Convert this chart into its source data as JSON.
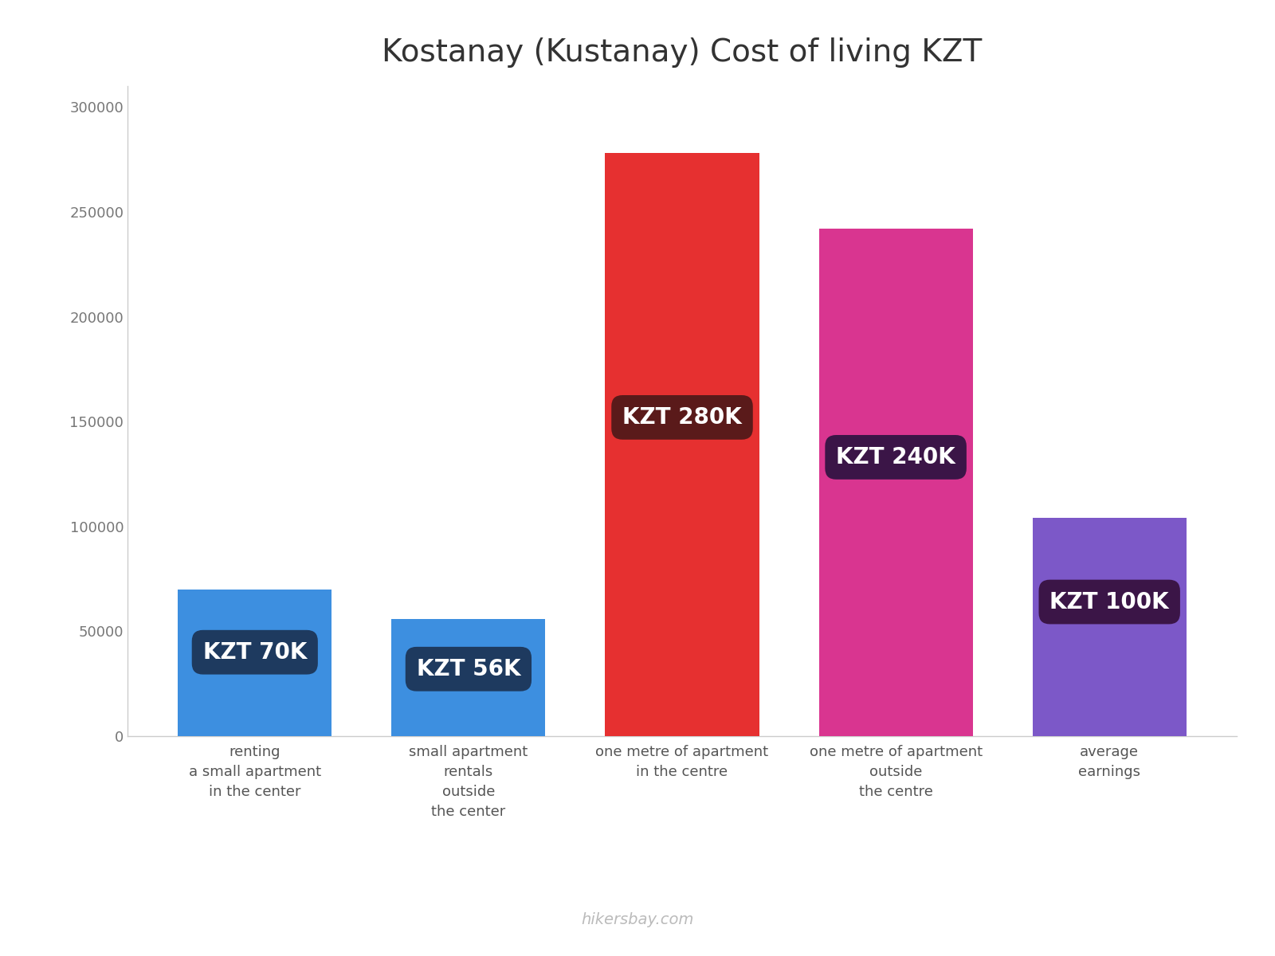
{
  "title": "Kostanay (Kustanay) Cost of living KZT",
  "title_fontsize": 28,
  "categories": [
    "renting\na small apartment\nin the center",
    "small apartment\nrentals\noutside\nthe center",
    "one metre of apartment\nin the centre",
    "one metre of apartment\noutside\nthe centre",
    "average\nearnings"
  ],
  "values": [
    70000,
    56000,
    278000,
    242000,
    104000
  ],
  "bar_colors": [
    "#3d8fe0",
    "#3d8fe0",
    "#e63030",
    "#d93590",
    "#7c58c8"
  ],
  "label_texts": [
    "KZT 70K",
    "KZT 56K",
    "KZT 280K",
    "KZT 240K",
    "KZT 100K"
  ],
  "label_bg_colors": [
    "#1e3a5f",
    "#1e3a5f",
    "#5a1a1a",
    "#3b1547",
    "#3b1547"
  ],
  "label_y_positions": [
    40000,
    32000,
    152000,
    133000,
    64000
  ],
  "ylim": [
    0,
    310000
  ],
  "yticks": [
    0,
    50000,
    100000,
    150000,
    200000,
    250000,
    300000
  ],
  "ytick_labels": [
    "0",
    "50000",
    "100000",
    "150000",
    "200000",
    "250000",
    "300000"
  ],
  "watermark": "hikersbay.com",
  "background_color": "#ffffff",
  "bar_width": 0.72
}
